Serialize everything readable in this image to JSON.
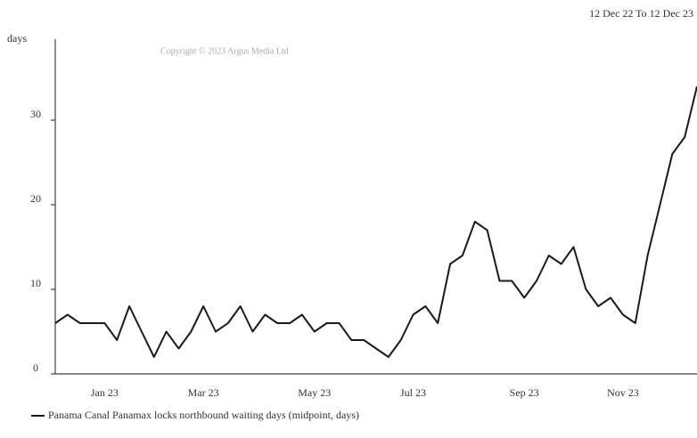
{
  "chart_data": {
    "type": "line",
    "subtitle": "12 Dec 22 To 12 Dec 23",
    "y_label": "days",
    "annotation": "Copyright © 2023 Argus Media Ltd",
    "categories": [
      null,
      null,
      null,
      null,
      "Jan 23",
      null,
      null,
      null,
      null,
      null,
      null,
      null,
      "Mar 23",
      null,
      null,
      null,
      null,
      null,
      null,
      null,
      null,
      "May 23",
      null,
      null,
      null,
      null,
      null,
      null,
      null,
      "Jul 23",
      null,
      null,
      null,
      null,
      null,
      null,
      null,
      null,
      "Sep 23",
      null,
      null,
      null,
      null,
      null,
      null,
      null,
      "Nov 23",
      null,
      null,
      null,
      null,
      null,
      null
    ],
    "series": [
      {
        "name": "Panama Canal Panamax locks northbound waiting days (midpoint, days)",
        "color": "#1a1a1a",
        "values": [
          6,
          7,
          6,
          6,
          6,
          4,
          8,
          5,
          2,
          5,
          3,
          5,
          8,
          5,
          6,
          8,
          5,
          7,
          6,
          6,
          7,
          5,
          6,
          6,
          4,
          4,
          3,
          2,
          4,
          7,
          8,
          6,
          13,
          14,
          18,
          17,
          11,
          11,
          9,
          11,
          14,
          13,
          15,
          10,
          8,
          9,
          7,
          6,
          14,
          20,
          26,
          28,
          34
        ]
      }
    ],
    "ylim": [
      0,
      40
    ],
    "yticks": [
      0,
      10,
      20,
      30
    ]
  }
}
